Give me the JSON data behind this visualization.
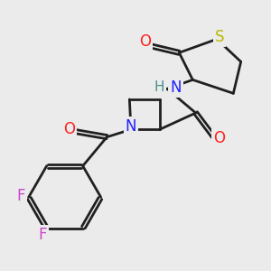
{
  "bg_color": "#ebebeb",
  "bond_color": "#202020",
  "bond_width": 2.0,
  "atom_colors": {
    "O": "#ff2020",
    "N": "#2020ff",
    "S": "#b8b800",
    "F": "#cc44cc",
    "H": "#4a9090",
    "C": "#202020"
  },
  "xlim": [
    0,
    10
  ],
  "ylim": [
    0,
    10
  ]
}
